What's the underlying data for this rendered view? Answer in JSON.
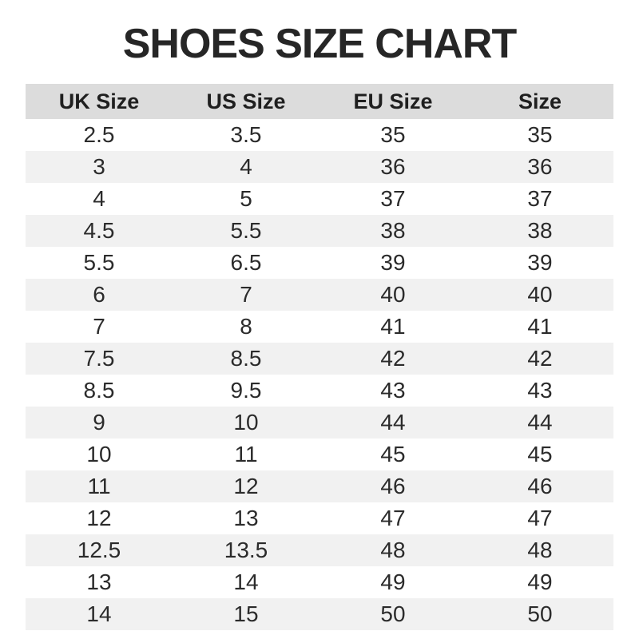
{
  "title": "SHOES SIZE CHART",
  "colors": {
    "header_bg": "#dcdcdc",
    "stripe_bg": "#f1f1f1",
    "row_bg": "#ffffff",
    "title_text": "#262626",
    "header_text": "#1f1f1f",
    "cell_text": "#2b2b2b",
    "page_bg": "#ffffff"
  },
  "chart_data": {
    "type": "table",
    "title": "SHOES SIZE CHART",
    "columns": [
      "UK Size",
      "US Size",
      "EU Size",
      "Size"
    ],
    "rows": [
      [
        "2.5",
        "3.5",
        "35",
        "35"
      ],
      [
        "3",
        "4",
        "36",
        "36"
      ],
      [
        "4",
        "5",
        "37",
        "37"
      ],
      [
        "4.5",
        "5.5",
        "38",
        "38"
      ],
      [
        "5.5",
        "6.5",
        "39",
        "39"
      ],
      [
        "6",
        "7",
        "40",
        "40"
      ],
      [
        "7",
        "8",
        "41",
        "41"
      ],
      [
        "7.5",
        "8.5",
        "42",
        "42"
      ],
      [
        "8.5",
        "9.5",
        "43",
        "43"
      ],
      [
        "9",
        "10",
        "44",
        "44"
      ],
      [
        "10",
        "11",
        "45",
        "45"
      ],
      [
        "11",
        "12",
        "46",
        "46"
      ],
      [
        "12",
        "13",
        "47",
        "47"
      ],
      [
        "12.5",
        "13.5",
        "48",
        "48"
      ],
      [
        "13",
        "14",
        "49",
        "49"
      ],
      [
        "14",
        "15",
        "50",
        "50"
      ]
    ],
    "layout": {
      "striped": true,
      "stripe_pattern": "even rows shaded",
      "grid": false,
      "alignment": "center"
    }
  }
}
